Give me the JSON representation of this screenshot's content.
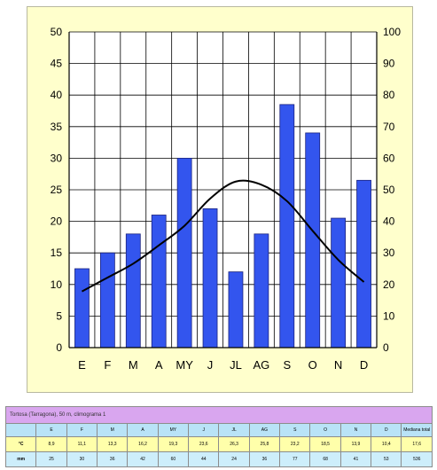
{
  "chart_data": {
    "type": "bar",
    "categories": [
      "E",
      "F",
      "M",
      "A",
      "MY",
      "J",
      "JL",
      "AG",
      "S",
      "O",
      "N",
      "D"
    ],
    "series": [
      {
        "type": "bar",
        "axis": "right",
        "color": "#3355ee",
        "values": [
          25,
          30,
          36,
          42,
          60,
          44,
          24,
          36,
          77,
          68,
          41,
          53
        ]
      },
      {
        "type": "line",
        "axis": "left",
        "color": "#000000",
        "values": [
          8.9,
          11.1,
          13.3,
          16.2,
          19.3,
          23.6,
          26.3,
          25.8,
          23.2,
          18.5,
          13.9,
          10.4
        ]
      }
    ],
    "y_left": {
      "min": 0,
      "max": 50,
      "step": 5,
      "ticks": [
        "0",
        "5",
        "10",
        "15",
        "20",
        "25",
        "30",
        "35",
        "40",
        "45",
        "50"
      ]
    },
    "y_right": {
      "min": 0,
      "max": 100,
      "step": 10,
      "ticks": [
        "0",
        "10",
        "20",
        "30",
        "40",
        "50",
        "60",
        "70",
        "80",
        "90",
        "100"
      ]
    },
    "grid": true,
    "background": "#ffffcc"
  },
  "table": {
    "caption": "Tortosa (Tarragona), 50 m, climograma 1",
    "months": [
      "E",
      "F",
      "M",
      "A",
      "MY",
      "J",
      "JL",
      "AG",
      "S",
      "O",
      "N",
      "D"
    ],
    "summary_header": "Mediana total",
    "rows": [
      {
        "label": "°C",
        "values": [
          "8,9",
          "11,1",
          "13,3",
          "16,2",
          "19,3",
          "23,6",
          "26,3",
          "25,8",
          "23,2",
          "18,5",
          "13,9",
          "10,4"
        ],
        "summary": "17,6"
      },
      {
        "label": "mm",
        "values": [
          "25",
          "30",
          "36",
          "42",
          "60",
          "44",
          "24",
          "36",
          "77",
          "68",
          "41",
          "53"
        ],
        "summary": "536"
      }
    ]
  }
}
